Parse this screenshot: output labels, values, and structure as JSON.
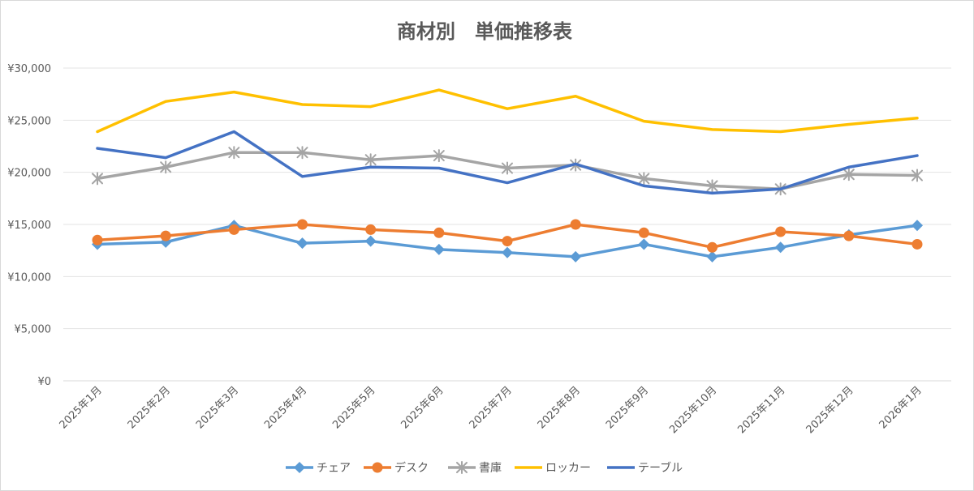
{
  "chart_data": {
    "type": "line",
    "title": "商材別　単価推移表",
    "xlabel": "",
    "ylabel": "",
    "categories": [
      "2025年1月",
      "2025年2月",
      "2025年3月",
      "2025年4月",
      "2025年5月",
      "2025年6月",
      "2025年7月",
      "2025年8月",
      "2025年9月",
      "2025年10月",
      "2025年11月",
      "2025年12月",
      "2026年1月"
    ],
    "ylim": [
      0,
      30000
    ],
    "yticks": [
      {
        "value": 0,
        "label": "¥0"
      },
      {
        "value": 5000,
        "label": "¥5,000"
      },
      {
        "value": 10000,
        "label": "¥10,000"
      },
      {
        "value": 15000,
        "label": "¥15,000"
      },
      {
        "value": 20000,
        "label": "¥20,000"
      },
      {
        "value": 25000,
        "label": "¥25,000"
      },
      {
        "value": 30000,
        "label": "¥30,000"
      }
    ],
    "grid": true,
    "legend_position": "bottom",
    "series": [
      {
        "name": "チェア",
        "color": "#5B9BD5",
        "marker": "diamond",
        "values": [
          13100,
          13300,
          14900,
          13200,
          13400,
          12600,
          12300,
          11900,
          13100,
          11900,
          12800,
          14000,
          14900
        ]
      },
      {
        "name": "デスク",
        "color": "#ED7D31",
        "marker": "circle",
        "values": [
          13500,
          13900,
          14500,
          15000,
          14500,
          14200,
          13400,
          15000,
          14200,
          12800,
          14300,
          13900,
          13100
        ]
      },
      {
        "name": "書庫",
        "color": "#A5A5A5",
        "marker": "star",
        "values": [
          19400,
          20500,
          21900,
          21900,
          21200,
          21600,
          20400,
          20700,
          19400,
          18700,
          18400,
          19800,
          19700
        ]
      },
      {
        "name": "ロッカー",
        "color": "#FFC000",
        "marker": "none",
        "values": [
          23900,
          26800,
          27700,
          26500,
          26300,
          27900,
          26100,
          27300,
          24900,
          24100,
          23900,
          24600,
          25200
        ]
      },
      {
        "name": "テーブル",
        "color": "#4472C4",
        "marker": "none",
        "values": [
          22300,
          21400,
          23900,
          19600,
          20500,
          20400,
          19000,
          20800,
          18700,
          18000,
          18400,
          20500,
          21600
        ]
      }
    ]
  }
}
